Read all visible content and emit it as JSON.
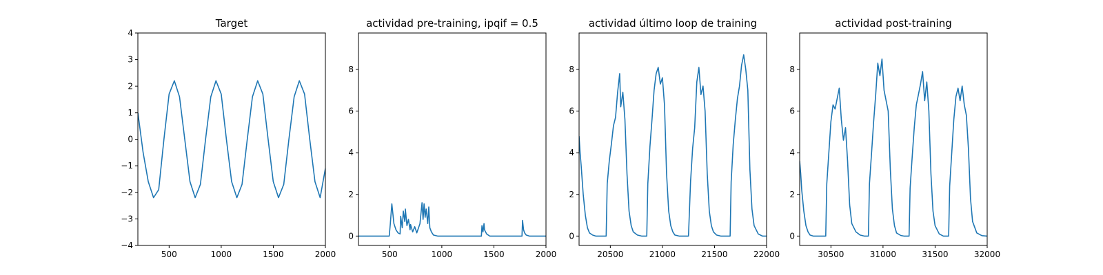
{
  "chart_data": [
    {
      "type": "line",
      "title": "Target",
      "xlim": [
        200,
        2000
      ],
      "ylim": [
        -4,
        4
      ],
      "xticks": [
        500,
        1000,
        1500,
        2000
      ],
      "xtick_labels": [
        "500",
        "1000",
        "1500",
        "2000"
      ],
      "yticks": [
        -4,
        -3,
        -2,
        -1,
        0,
        1,
        2,
        3,
        4
      ],
      "ytick_labels": [
        "−4",
        "−3",
        "−2",
        "−1",
        "0",
        "1",
        "2",
        "3",
        "4"
      ],
      "color": "#1f77b4",
      "series": [
        {
          "x": [
            200,
            250,
            300,
            350,
            400,
            450,
            500,
            550,
            600,
            650,
            700,
            750,
            800,
            850,
            900,
            950,
            1000,
            1050,
            1100,
            1150,
            1200,
            1250,
            1300,
            1350,
            1400,
            1450,
            1500,
            1550,
            1600,
            1650,
            1700,
            1750,
            1800,
            1850,
            1900,
            1950,
            2000
          ],
          "y": [
            1.0,
            -0.5,
            -1.6,
            -2.2,
            -1.9,
            0.0,
            1.7,
            2.2,
            1.6,
            0.0,
            -1.6,
            -2.2,
            -1.7,
            0.0,
            1.6,
            2.2,
            1.7,
            0.0,
            -1.6,
            -2.2,
            -1.7,
            0.0,
            1.6,
            2.2,
            1.7,
            0.0,
            -1.6,
            -2.2,
            -1.7,
            0.0,
            1.6,
            2.2,
            1.7,
            0.0,
            -1.6,
            -2.2,
            -1.1
          ]
        }
      ]
    },
    {
      "type": "line",
      "title": "actividad pre-training, ipqif = 0.5",
      "xlim": [
        200,
        2000
      ],
      "ylim": [
        -0.45,
        9.75
      ],
      "xticks": [
        500,
        1000,
        1500,
        2000
      ],
      "xtick_labels": [
        "500",
        "1000",
        "1500",
        "2000"
      ],
      "yticks": [
        0,
        2,
        4,
        6,
        8
      ],
      "ytick_labels": [
        "0",
        "2",
        "4",
        "6",
        "8"
      ],
      "color": "#1f77b4",
      "series": [
        {
          "x": [
            200,
            495,
            505,
            520,
            540,
            560,
            580,
            600,
            605,
            620,
            630,
            645,
            650,
            665,
            680,
            695,
            700,
            720,
            740,
            760,
            790,
            810,
            820,
            830,
            840,
            850,
            865,
            875,
            885,
            900,
            920,
            960,
            1000,
            1380,
            1385,
            1395,
            1405,
            1410,
            1430,
            1460,
            1500,
            1770,
            1775,
            1785,
            1795,
            1810,
            1840,
            1900,
            2000
          ],
          "y": [
            0,
            0,
            0.55,
            1.55,
            0.6,
            0.3,
            0.15,
            0.1,
            0.95,
            0.4,
            1.2,
            0.7,
            1.3,
            0.5,
            0.8,
            0.3,
            0.55,
            0.2,
            0.45,
            0.15,
            0.6,
            1.6,
            0.8,
            1.55,
            0.9,
            1.3,
            0.6,
            1.4,
            0.4,
            0.2,
            0.05,
            0,
            0,
            0,
            0.5,
            0.2,
            0.6,
            0.3,
            0.1,
            0,
            0,
            0,
            0.75,
            0.3,
            0.15,
            0.05,
            0,
            0,
            0
          ]
        }
      ]
    },
    {
      "type": "line",
      "title": "actividad último loop de training",
      "xlim": [
        20200,
        22000
      ],
      "ylim": [
        -0.45,
        9.75
      ],
      "xticks": [
        20500,
        21000,
        21500,
        22000
      ],
      "xtick_labels": [
        "20500",
        "21000",
        "21500",
        "22000"
      ],
      "yticks": [
        0,
        2,
        4,
        6,
        8
      ],
      "ytick_labels": [
        "0",
        "2",
        "4",
        "6",
        "8"
      ],
      "color": "#1f77b4",
      "series": [
        {
          "x": [
            20200,
            20210,
            20220,
            20240,
            20260,
            20280,
            20300,
            20330,
            20360,
            20400,
            20460,
            20470,
            20490,
            20510,
            20530,
            20550,
            20570,
            20590,
            20600,
            20620,
            20640,
            20660,
            20680,
            20700,
            20720,
            20760,
            20800,
            20850,
            20860,
            20880,
            20900,
            20920,
            20940,
            20960,
            20980,
            21000,
            21020,
            21040,
            21060,
            21080,
            21100,
            21120,
            21160,
            21200,
            21250,
            21270,
            21290,
            21310,
            21330,
            21350,
            21370,
            21390,
            21410,
            21430,
            21450,
            21470,
            21490,
            21520,
            21560,
            21600,
            21650,
            21660,
            21680,
            21700,
            21720,
            21740,
            21760,
            21780,
            21800,
            21820,
            21840,
            21860,
            21880,
            21920,
            21960,
            22000
          ],
          "y": [
            4.8,
            4.0,
            3.4,
            2.0,
            1.0,
            0.4,
            0.15,
            0.05,
            0,
            0,
            0,
            2.5,
            3.6,
            4.4,
            5.3,
            5.7,
            6.9,
            7.8,
            6.2,
            6.9,
            5.6,
            3.0,
            1.2,
            0.5,
            0.2,
            0.05,
            0,
            0,
            2.5,
            4.3,
            5.6,
            7.0,
            7.8,
            8.1,
            7.3,
            7.6,
            6.3,
            3.0,
            1.2,
            0.5,
            0.2,
            0.05,
            0,
            0,
            0,
            2.6,
            4.2,
            5.2,
            7.4,
            8.1,
            6.8,
            7.2,
            6.0,
            3.0,
            1.2,
            0.5,
            0.2,
            0.05,
            0,
            0,
            0,
            2.6,
            4.4,
            5.6,
            6.6,
            7.2,
            8.2,
            8.7,
            8.0,
            7.0,
            3.2,
            1.3,
            0.5,
            0.1,
            0,
            0
          ]
        }
      ]
    },
    {
      "type": "line",
      "title": "actividad post-training",
      "xlim": [
        30200,
        32000
      ],
      "ylim": [
        -0.45,
        9.75
      ],
      "xticks": [
        30500,
        31000,
        31500,
        32000
      ],
      "xtick_labels": [
        "30500",
        "31000",
        "31500",
        "32000"
      ],
      "yticks": [
        0,
        2,
        4,
        6,
        8
      ],
      "ytick_labels": [
        "0",
        "2",
        "4",
        "6",
        "8"
      ],
      "color": "#1f77b4",
      "series": [
        {
          "x": [
            30200,
            30210,
            30220,
            30240,
            30260,
            30280,
            30300,
            30330,
            30370,
            30400,
            30450,
            30460,
            30480,
            30500,
            30520,
            30540,
            30560,
            30580,
            30600,
            30620,
            30640,
            30660,
            30680,
            30700,
            30740,
            30780,
            30820,
            30860,
            30870,
            30890,
            30910,
            30930,
            30950,
            30970,
            30990,
            31010,
            31030,
            31050,
            31070,
            31090,
            31110,
            31130,
            31170,
            31200,
            31250,
            31260,
            31280,
            31300,
            31320,
            31340,
            31360,
            31380,
            31400,
            31420,
            31440,
            31460,
            31480,
            31500,
            31540,
            31580,
            31630,
            31640,
            31660,
            31680,
            31700,
            31720,
            31740,
            31760,
            31780,
            31800,
            31820,
            31840,
            31860,
            31900,
            31950,
            32000
          ],
          "y": [
            3.6,
            3.0,
            2.2,
            1.2,
            0.5,
            0.2,
            0.05,
            0,
            0,
            0,
            0,
            2.5,
            4.0,
            5.5,
            6.3,
            6.1,
            6.6,
            7.1,
            5.6,
            4.6,
            5.2,
            3.6,
            1.5,
            0.6,
            0.2,
            0.05,
            0,
            0,
            2.5,
            4.0,
            5.5,
            6.8,
            8.3,
            7.7,
            8.5,
            7.0,
            6.5,
            6.0,
            3.2,
            1.3,
            0.5,
            0.15,
            0.03,
            0,
            0,
            2.3,
            3.8,
            5.2,
            6.3,
            6.8,
            7.3,
            7.9,
            6.5,
            7.4,
            6.0,
            3.0,
            1.2,
            0.5,
            0.1,
            0,
            0,
            2.4,
            4.0,
            5.6,
            6.7,
            7.1,
            6.5,
            7.2,
            6.3,
            5.8,
            4.2,
            1.8,
            0.7,
            0.15,
            0.02,
            0
          ]
        }
      ]
    }
  ]
}
